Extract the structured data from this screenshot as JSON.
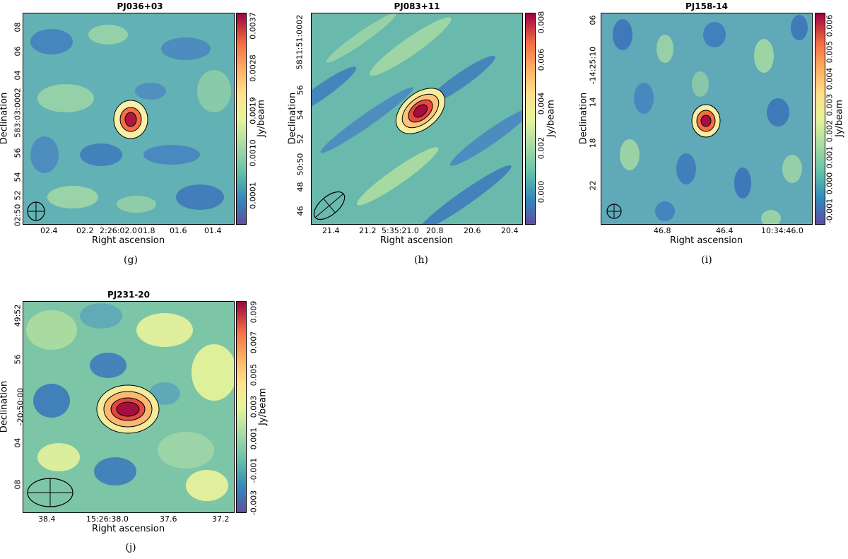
{
  "figure": {
    "panels": [
      {
        "id": "g",
        "title": "PJ036+03",
        "caption": "(g)",
        "xlabel": "Right ascension",
        "ylabel": "Declination",
        "cblabel": "Jy/beam",
        "xticks": [
          "02.4",
          "02.2",
          "2:26:02.0",
          "01.8",
          "01.6",
          "01.4"
        ],
        "yticks": [
          "08",
          "06",
          "04",
          "583:03:0002",
          "56",
          "54",
          "52",
          "02:50"
        ],
        "cbticks": [
          "0.0001",
          "0.0010",
          "0.0019",
          "0.0028",
          "0.0037"
        ]
      },
      {
        "id": "h",
        "title": "PJ083+11",
        "caption": "(h)",
        "xlabel": "Right ascension",
        "ylabel": "Declination",
        "cblabel": "Jy/beam",
        "xticks": [
          "21.4",
          "21.2",
          "5:35:21.0",
          "20.8",
          "20.6",
          "20.4"
        ],
        "yticks": [
          "5811:51:0002",
          "56",
          "54",
          "52",
          "50:50",
          "48",
          "46"
        ],
        "cbticks": [
          "0.000",
          "0.002",
          "0.004",
          "0.006",
          "0.008"
        ]
      },
      {
        "id": "i",
        "title": "PJ158-14",
        "caption": "(i)",
        "xlabel": "Right ascension",
        "ylabel": "Declination",
        "cblabel": "Jy/beam",
        "xticks": [
          "46.8",
          "46.4",
          "10:34:46.0"
        ],
        "yticks": [
          "06",
          "-14:25:10",
          "14",
          "18",
          "22"
        ],
        "cbticks": [
          "-0.001",
          "0.000",
          "0.001",
          "0.002",
          "0.003",
          "0.004",
          "0.005",
          "0.006"
        ]
      },
      {
        "id": "j",
        "title": "PJ231-20",
        "caption": "(j)",
        "xlabel": "Right ascension",
        "ylabel": "Declination",
        "cblabel": "Jy/beam",
        "xticks": [
          "38.4",
          "15:26:38.0",
          "37.6",
          "37.2"
        ],
        "yticks": [
          "49:52",
          "56",
          "-20:50:00",
          "04",
          "08"
        ],
        "cbticks": [
          "-0.003",
          "-0.001",
          "0.001",
          "0.003",
          "0.005",
          "0.007",
          "0.009"
        ]
      }
    ]
  }
}
